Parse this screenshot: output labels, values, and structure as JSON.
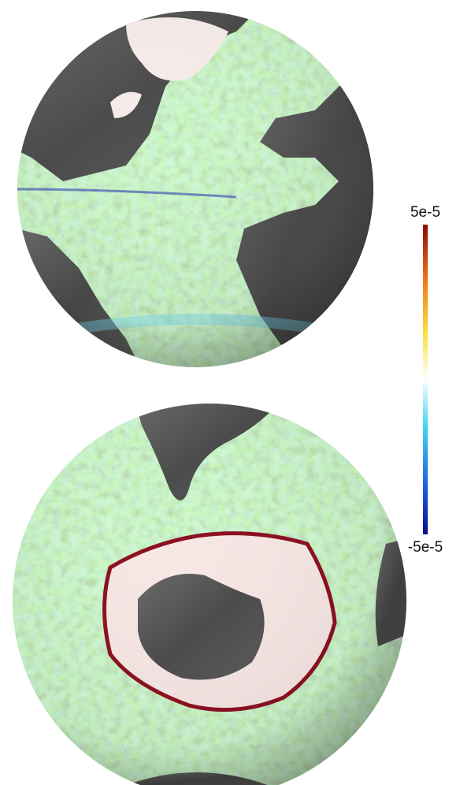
{
  "colorbar": {
    "max_label": "5e-5",
    "min_label": "-5e-5"
  }
}
